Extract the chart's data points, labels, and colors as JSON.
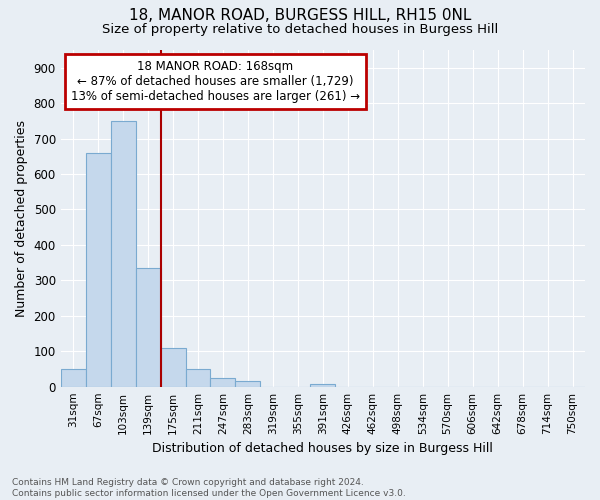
{
  "title1": "18, MANOR ROAD, BURGESS HILL, RH15 0NL",
  "title2": "Size of property relative to detached houses in Burgess Hill",
  "xlabel": "Distribution of detached houses by size in Burgess Hill",
  "ylabel": "Number of detached properties",
  "footer1": "Contains HM Land Registry data © Crown copyright and database right 2024.",
  "footer2": "Contains public sector information licensed under the Open Government Licence v3.0.",
  "bin_labels": [
    "31sqm",
    "67sqm",
    "103sqm",
    "139sqm",
    "175sqm",
    "211sqm",
    "247sqm",
    "283sqm",
    "319sqm",
    "355sqm",
    "391sqm",
    "426sqm",
    "462sqm",
    "498sqm",
    "534sqm",
    "570sqm",
    "606sqm",
    "642sqm",
    "678sqm",
    "714sqm",
    "750sqm"
  ],
  "bar_values": [
    50,
    660,
    750,
    335,
    108,
    50,
    25,
    15,
    0,
    0,
    8,
    0,
    0,
    0,
    0,
    0,
    0,
    0,
    0,
    0,
    0
  ],
  "bar_color": "#c5d8ec",
  "bar_edge_color": "#7aaad0",
  "highlight_bin_index": 4,
  "highlight_color": "#aa0000",
  "annotation_title": "18 MANOR ROAD: 168sqm",
  "annotation_line1": "← 87% of detached houses are smaller (1,729)",
  "annotation_line2": "13% of semi-detached houses are larger (261) →",
  "annotation_box_color": "#bb0000",
  "ylim": [
    0,
    950
  ],
  "yticks": [
    0,
    100,
    200,
    300,
    400,
    500,
    600,
    700,
    800,
    900
  ],
  "bg_color": "#e8eef4",
  "plot_bg_color": "#e8eef4",
  "grid_color": "#ffffff"
}
